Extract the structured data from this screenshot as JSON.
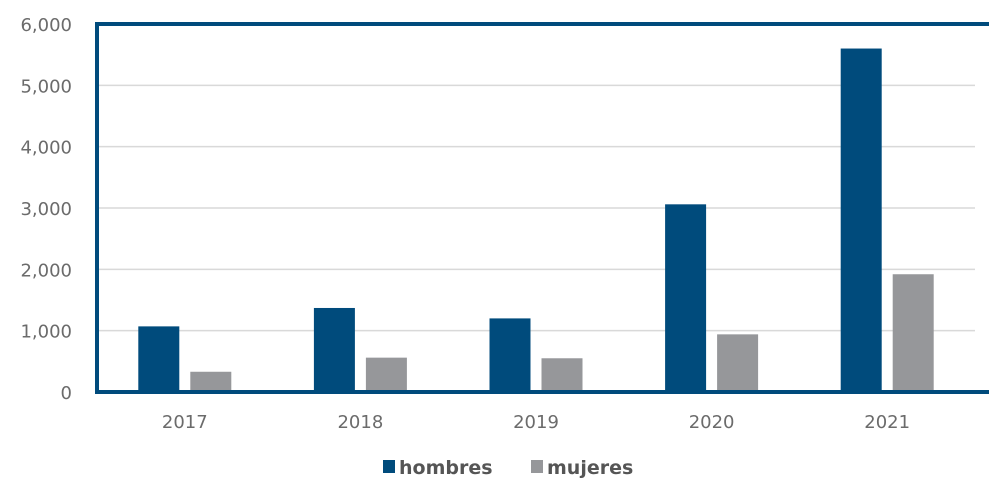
{
  "chart_data": {
    "type": "bar",
    "title": "",
    "xlabel": "",
    "ylabel": "",
    "categories": [
      "2017",
      "2018",
      "2019",
      "2020",
      "2021"
    ],
    "series": [
      {
        "name": "hombres",
        "color": "#004b7c",
        "values": [
          1070,
          1370,
          1200,
          3060,
          5600
        ]
      },
      {
        "name": "mujeres",
        "color": "#96979a",
        "values": [
          330,
          560,
          550,
          940,
          1920
        ]
      }
    ],
    "ylim": [
      0,
      6000
    ],
    "yticks": [
      "0",
      "1,000",
      "2,000",
      "3,000",
      "4,000",
      "5,000",
      "6,000"
    ],
    "ytick_values": [
      0,
      1000,
      2000,
      3000,
      4000,
      5000,
      6000
    ],
    "grid": true,
    "legend": "bottom",
    "frame_color": "#004b7c",
    "grid_color": "#d9d9d9"
  }
}
